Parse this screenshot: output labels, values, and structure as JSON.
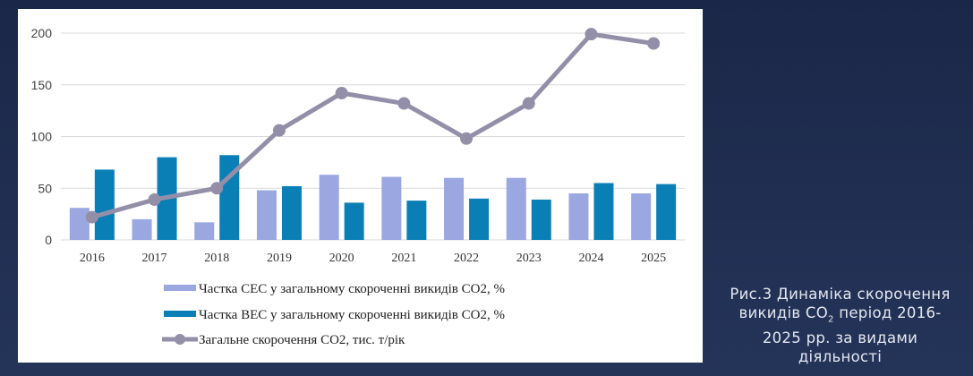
{
  "chart_data": {
    "type": "bar",
    "categories": [
      "2016",
      "2017",
      "2018",
      "2019",
      "2020",
      "2021",
      "2022",
      "2023",
      "2024",
      "2025"
    ],
    "ylim": [
      0,
      200
    ],
    "yticks": [
      0,
      50,
      100,
      150,
      200
    ],
    "grid": true,
    "legend_placement": "bottom",
    "series": [
      {
        "name": "Частка СЕС у загальному скороченні викидів СО2, %",
        "type": "bar",
        "color": "#9aa7e0",
        "values": [
          31,
          20,
          17,
          48,
          63,
          61,
          60,
          60,
          45,
          45
        ]
      },
      {
        "name": "Частка ВЕС у загальному скороченні викидів СО2, %",
        "type": "bar",
        "color": "#0a7fb5",
        "values": [
          68,
          80,
          82,
          52,
          36,
          38,
          40,
          39,
          55,
          54
        ]
      },
      {
        "name": "Загальне скорочення СО2, тис. т/рік",
        "type": "line",
        "color": "#948fa8",
        "values": [
          22,
          39,
          50,
          106,
          142,
          132,
          98,
          132,
          199,
          190
        ]
      }
    ]
  },
  "caption": {
    "line1": "Рис.3 Динаміка скорочення",
    "line2_a": "викидів CO",
    "line2_sub": "2",
    "line2_b": " період 2016-",
    "line3": "2025 рр. за видами",
    "line4": "діяльності"
  }
}
